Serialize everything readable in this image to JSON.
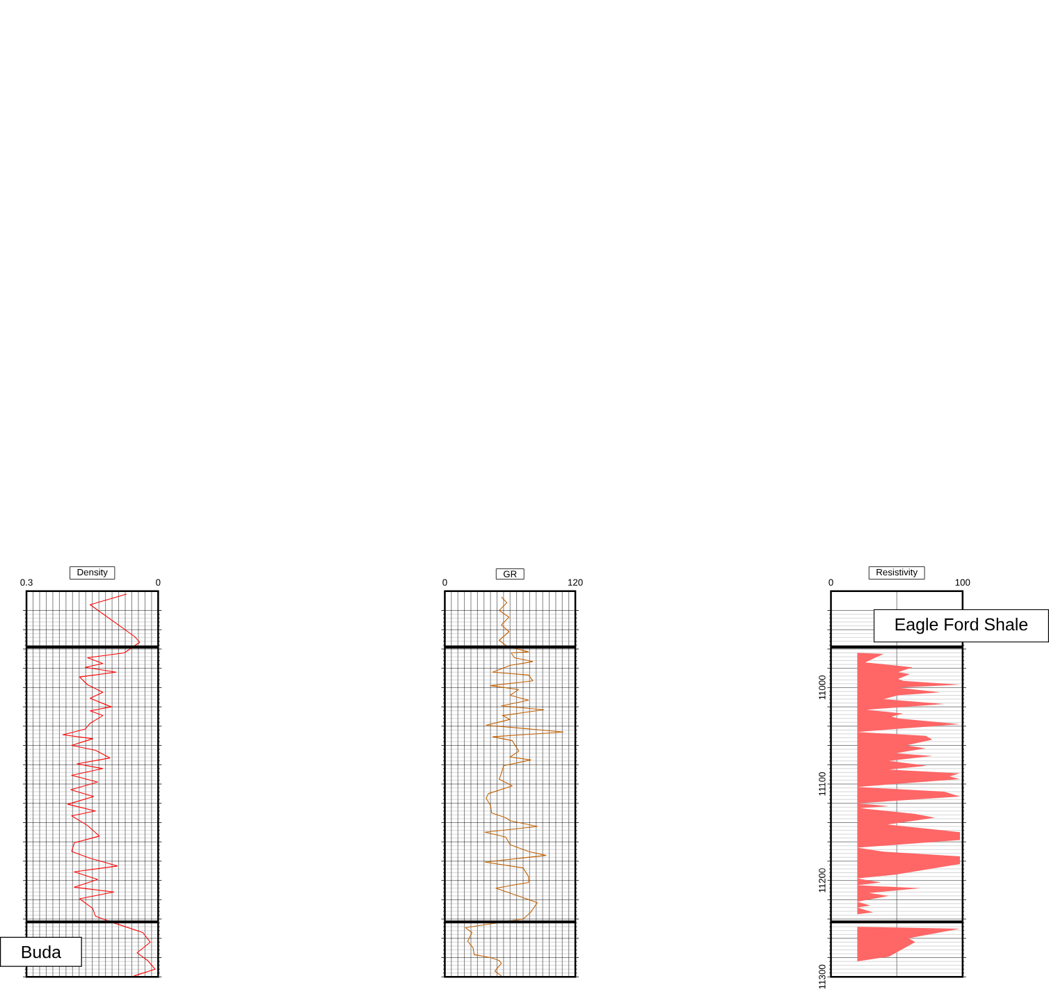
{
  "chart_data": [
    {
      "type": "line",
      "xlabel": "GR",
      "xlim": [
        0,
        120
      ],
      "xticks": [
        0,
        {
          "value": 6,
          "label": null
        },
        {
          "value": 12,
          "label": null
        },
        {
          "value": 18,
          "label": null
        },
        {
          "value": 24,
          "label": null
        },
        {
          "value": 30,
          "label": null
        },
        {
          "value": 36,
          "label": null
        },
        {
          "value": 42,
          "label": null
        },
        {
          "value": 48,
          "label": null
        },
        {
          "value": 54,
          "label": null
        },
        {
          "value": 60,
          "label": null
        },
        {
          "value": 66,
          "label": null
        },
        {
          "value": 72,
          "label": null
        },
        {
          "value": 78,
          "label": null
        },
        {
          "value": 84,
          "label": null
        },
        {
          "value": 90,
          "label": null
        },
        {
          "value": 96,
          "label": null
        },
        {
          "value": 102,
          "label": null
        },
        {
          "value": 108,
          "label": null
        },
        {
          "value": 114,
          "label": null
        },
        120
      ],
      "ylim": [
        11300,
        10900
      ],
      "yticks": [
        {
          "value": 10920,
          "label": null
        },
        {
          "value": 10940,
          "label": null
        },
        {
          "value": 10960,
          "label": null
        },
        {
          "value": 10980,
          "label": null
        },
        11000,
        {
          "value": 11020,
          "label": null
        },
        {
          "value": 11040,
          "label": null
        },
        {
          "value": 11060,
          "label": null
        },
        {
          "value": 11080,
          "label": null
        },
        11100,
        {
          "value": 11120,
          "label": null
        },
        {
          "value": 11140,
          "label": null
        },
        {
          "value": 11160,
          "label": null
        },
        {
          "value": 11180,
          "label": null
        },
        11200,
        {
          "value": 11220,
          "label": null
        },
        {
          "value": 11240,
          "label": null
        },
        {
          "value": 11260,
          "label": null
        },
        {
          "value": 11280,
          "label": null
        },
        11300
      ],
      "tick_labels": "x",
      "grid": true,
      "series": [
        {
          "color": "#c06000",
          "x": [
            52,
            57,
            50,
            59,
            52,
            59,
            50,
            57,
            77,
            61,
            64,
            81,
            60,
            44,
            77,
            81,
            42,
            68,
            60,
            77,
            52,
            91,
            53,
            60,
            38,
            109,
            44,
            62,
            68,
            60,
            79,
            54,
            52,
            50,
            62,
            40,
            38,
            42,
            43,
            56,
            60,
            85,
            37,
            56,
            60,
            77,
            93,
            37,
            72,
            77,
            77,
            47,
            70,
            85,
            79,
            72,
            19,
            25,
            21,
            26,
            27,
            42,
            50,
            52,
            46,
            52
          ],
          "values": [
            10906,
            10912,
            10920,
            10927,
            10935,
            10942,
            10951,
            10957,
            10963,
            10964,
            10969,
            10973,
            10977,
            10984,
            10987,
            10993,
            10998,
            11002,
            11008,
            11013,
            11019,
            11023,
            11029,
            11033,
            11039,
            11046,
            11051,
            11055,
            11066,
            11072,
            11075,
            11081,
            11089,
            11095,
            11102,
            11110,
            11115,
            11122,
            11130,
            11135,
            11138,
            11144,
            11150,
            11155,
            11163,
            11170,
            11174,
            11181,
            11187,
            11196,
            11202,
            11208,
            11217,
            11223,
            11233,
            11240,
            11249,
            11254,
            11263,
            11270,
            11277,
            11280,
            11283,
            11286,
            11294,
            11299
          ]
        }
      ],
      "ref_lines": [
        {
          "axis": "y",
          "value": 10958
        },
        {
          "axis": "y",
          "value": 11243
        }
      ]
    },
    {
      "type": "area",
      "xlabel": "Resistivity",
      "xlim": [
        0,
        100
      ],
      "xticks": [
        0,
        {
          "value": 50,
          "label": null
        },
        100
      ],
      "ylim": [
        11300,
        10900
      ],
      "yticks": [
        {
          "value": 10920,
          "label": null
        },
        {
          "value": 10940,
          "label": null
        },
        {
          "value": 10960,
          "label": null
        },
        {
          "value": 10980,
          "label": null
        },
        11000,
        {
          "value": 11020,
          "label": null
        },
        {
          "value": 11040,
          "label": null
        },
        {
          "value": 11060,
          "label": null
        },
        {
          "value": 11080,
          "label": null
        },
        11100,
        {
          "value": 11120,
          "label": null
        },
        {
          "value": 11140,
          "label": null
        },
        {
          "value": 11160,
          "label": null
        },
        {
          "value": 11180,
          "label": null
        },
        11200,
        {
          "value": 11220,
          "label": null
        },
        {
          "value": 11240,
          "label": null
        },
        {
          "value": 11260,
          "label": null
        },
        {
          "value": 11280,
          "label": null
        },
        11300
      ],
      "grid": true,
      "series": [
        {
          "color": "#ff6666",
          "x": [
            20,
            40,
            26,
            42,
            62,
            51,
            60,
            51,
            55,
            98,
            51,
            83,
            51,
            40,
            86,
            27,
            55,
            46,
            51,
            98,
            20,
            72,
            77,
            57,
            72,
            49,
            77,
            44,
            73,
            44,
            98,
            90,
            98,
            20,
            86,
            98,
            20,
            44,
            22,
            64,
            79,
            43,
            98,
            98,
            20,
            39,
            98,
            98,
            49,
            20,
            38,
            20,
            68,
            29,
            44,
            20,
            30,
            20,
            32,
            20,
            20,
            98,
            59,
            64,
            44,
            20
          ],
          "values": [
            10964,
            10965,
            10974,
            10976,
            10979,
            10984,
            10986,
            10991,
            10993,
            10997,
            11000,
            11005,
            11008,
            11012,
            11017,
            11023,
            11027,
            11030,
            11032,
            11038,
            11046,
            11050,
            11054,
            11060,
            11063,
            11068,
            11071,
            11076,
            11081,
            11085,
            11089,
            11092,
            11095,
            11103,
            11108,
            11113,
            11120,
            11123,
            11125,
            11131,
            11135,
            11142,
            11150,
            11158,
            11166,
            11170,
            11175,
            11183,
            11194,
            11198,
            11202,
            11205,
            11208,
            11213,
            11216,
            11222,
            11226,
            11228,
            11233,
            11235,
            11248,
            11250,
            11260,
            11264,
            11279,
            11284
          ]
        }
      ],
      "ref_lines": [
        {
          "axis": "y",
          "value": 10958
        },
        {
          "axis": "y",
          "value": 11243
        }
      ],
      "annotations": [
        "Eagle Ford Shale"
      ]
    },
    {
      "type": "line",
      "xlabel": "Density",
      "xlim": [
        0.3,
        0
      ],
      "xticks": [
        0.3,
        {
          "value": 0.285,
          "label": null
        },
        {
          "value": 0.27,
          "label": null
        },
        {
          "value": 0.255,
          "label": null
        },
        {
          "value": 0.24,
          "label": null
        },
        {
          "value": 0.225,
          "label": null
        },
        {
          "value": 0.21,
          "label": null
        },
        {
          "value": 0.195,
          "label": null
        },
        {
          "value": 0.18,
          "label": null
        },
        {
          "value": 0.165,
          "label": null
        },
        {
          "value": 0.15,
          "label": null
        },
        {
          "value": 0.135,
          "label": null
        },
        {
          "value": 0.12,
          "label": null
        },
        {
          "value": 0.105,
          "label": null
        },
        {
          "value": 0.09,
          "label": null
        },
        {
          "value": 0.075,
          "label": null
        },
        {
          "value": 0.06,
          "label": null
        },
        {
          "value": 0.045,
          "label": null
        },
        {
          "value": 0.03,
          "label": null
        },
        {
          "value": 0.015,
          "label": null
        },
        0
      ],
      "ylim": [
        11300,
        10900
      ],
      "yticks": [
        {
          "value": 10920,
          "label": null
        },
        {
          "value": 10940,
          "label": null
        },
        {
          "value": 10960,
          "label": null
        },
        {
          "value": 10980,
          "label": null
        },
        11000,
        {
          "value": 11020,
          "label": null
        },
        {
          "value": 11040,
          "label": null
        },
        {
          "value": 11060,
          "label": null
        },
        {
          "value": 11080,
          "label": null
        },
        11100,
        {
          "value": 11120,
          "label": null
        },
        {
          "value": 11140,
          "label": null
        },
        {
          "value": 11160,
          "label": null
        },
        {
          "value": 11180,
          "label": null
        },
        11200,
        {
          "value": 11220,
          "label": null
        },
        {
          "value": 11240,
          "label": null
        },
        {
          "value": 11260,
          "label": null
        },
        {
          "value": 11280,
          "label": null
        },
        11300
      ],
      "tick_labels": "x",
      "grid": true,
      "series": [
        {
          "color": "#ff0000",
          "x": [
            0.072,
            0.155,
            0.054,
            0.042,
            0.077,
            0.161,
            0.126,
            0.166,
            0.096,
            0.179,
            0.161,
            0.126,
            0.155,
            0.107,
            0.155,
            0.126,
            0.155,
            0.166,
            0.217,
            0.149,
            0.197,
            0.143,
            0.11,
            0.185,
            0.126,
            0.197,
            0.138,
            0.199,
            0.147,
            0.206,
            0.143,
            0.197,
            0.161,
            0.134,
            0.191,
            0.197,
            0.155,
            0.093,
            0.191,
            0.138,
            0.191,
            0.101,
            0.179,
            0.149,
            0.143,
            0.101,
            0.035,
            0.018,
            0.048,
            0.024,
            0.007,
            0.055
          ],
          "values": [
            10903,
            10914,
            10947,
            10953,
            10964,
            10969,
            10975,
            10979,
            10984,
            10989,
            10997,
            11005,
            11011,
            11020,
            11024,
            11029,
            11037,
            11043,
            11049,
            11053,
            11060,
            11065,
            11073,
            11079,
            11084,
            11091,
            11098,
            11106,
            11113,
            11121,
            11128,
            11133,
            11143,
            11154,
            11161,
            11170,
            11177,
            11185,
            11191,
            11199,
            11207,
            11212,
            11219,
            11229,
            11237,
            11244,
            11254,
            11264,
            11275,
            11283,
            11292,
            11299
          ]
        }
      ],
      "ref_lines": [
        {
          "axis": "y",
          "value": 10958
        },
        {
          "axis": "y",
          "value": 11243
        }
      ],
      "annotations": [
        "Buda"
      ]
    }
  ]
}
